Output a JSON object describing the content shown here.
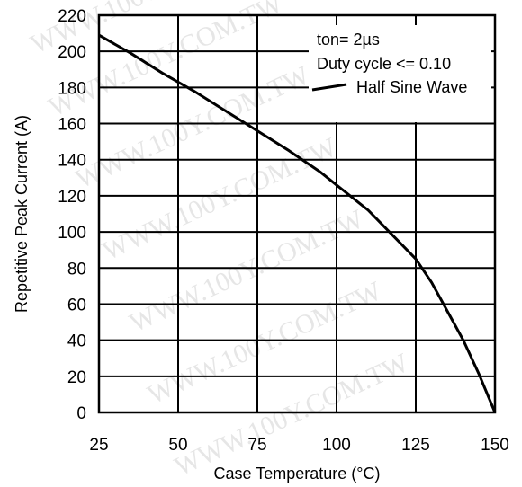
{
  "watermark": "WWW.100Y.COM.TW",
  "chart_data": {
    "type": "line",
    "xlabel": "Case Temperature (°C)",
    "ylabel": "Repetitive Peak Current (A)",
    "xlim": [
      25,
      150
    ],
    "ylim": [
      0,
      220
    ],
    "x_ticks": [
      25,
      50,
      75,
      100,
      125,
      150
    ],
    "y_ticks": [
      0,
      20,
      40,
      60,
      80,
      100,
      120,
      140,
      160,
      180,
      200,
      220
    ],
    "grid": true,
    "legend_position": "top-right",
    "annotations": [
      "ton= 2µs",
      "Duty cycle <= 0.10"
    ],
    "series": [
      {
        "name": "Half Sine Wave",
        "color": "#000000",
        "x": [
          25,
          35,
          45,
          55,
          65,
          75,
          85,
          95,
          100,
          105,
          110,
          115,
          120,
          125,
          130,
          135,
          140,
          145,
          150
        ],
        "y": [
          209,
          199,
          188,
          178,
          167,
          156,
          145,
          133,
          126,
          119,
          112,
          103,
          94,
          85,
          72,
          56,
          40,
          21,
          0
        ]
      }
    ]
  }
}
